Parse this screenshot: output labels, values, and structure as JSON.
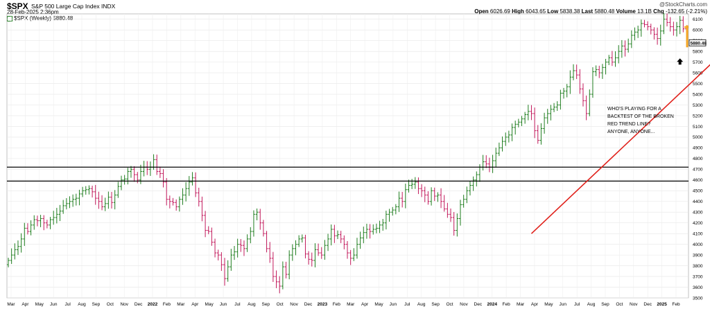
{
  "header": {
    "symbol": "$SPX",
    "name": "S&P 500 Large Cap Index",
    "exchange": "INDX",
    "datetime": "28-Feb-2025 2:36pm",
    "watermark": "@StockCharts.com",
    "ohlc": {
      "open_label": "Open",
      "open": "6026.69",
      "high_label": "High",
      "high": "6043.65",
      "low_label": "Low",
      "low": "5838.38",
      "last_label": "Last",
      "last": "5880.48",
      "volume_label": "Volume",
      "volume": "13.1B",
      "chg_label": "Chg",
      "chg": "-132.65 (-2.21%)"
    },
    "legend": "$SPX (Weekly) 5880.48"
  },
  "chart_data": {
    "type": "ohlc",
    "ylim": [
      3500,
      6150
    ],
    "y_ticks": [
      3500,
      3600,
      3700,
      3800,
      3900,
      4000,
      4100,
      4200,
      4300,
      4400,
      4500,
      4600,
      4700,
      4800,
      4900,
      5000,
      5100,
      5200,
      5300,
      5400,
      5500,
      5600,
      5700,
      5800,
      5900,
      6000,
      6100
    ],
    "x_labels": [
      "Mar",
      "Apr",
      "May",
      "Jun",
      "Jul",
      "Aug",
      "Sep",
      "Oct",
      "Nov",
      "Dec",
      "2022",
      "Feb",
      "Mar",
      "Apr",
      "May",
      "Jun",
      "Jul",
      "Aug",
      "Sep",
      "Oct",
      "Nov",
      "Dec",
      "2023",
      "Feb",
      "Mar",
      "Apr",
      "May",
      "Jun",
      "Jul",
      "Aug",
      "Sep",
      "Oct",
      "Nov",
      "Dec",
      "2024",
      "Feb",
      "Mar",
      "Apr",
      "May",
      "Jun",
      "Jul",
      "Aug",
      "Sep",
      "Oct",
      "Nov",
      "Dec",
      "2025",
      "Feb"
    ],
    "bold_labels": [
      "2022",
      "2023",
      "2024",
      "2025"
    ],
    "last_price_label": "5880.48",
    "closes": [
      3850,
      3900,
      3950,
      3980,
      4050,
      4150,
      4120,
      4180,
      4230,
      4220,
      4240,
      4200,
      4180,
      4230,
      4250,
      4280,
      4310,
      4360,
      4380,
      4400,
      4420,
      4430,
      4470,
      4500,
      4510,
      4520,
      4490,
      4430,
      4400,
      4350,
      4380,
      4440,
      4390,
      4460,
      4540,
      4600,
      4610,
      4680,
      4700,
      4650,
      4600,
      4680,
      4720,
      4700,
      4720,
      4790,
      4680,
      4660,
      4580,
      4420,
      4400,
      4390,
      4350,
      4420,
      4460,
      4520,
      4580,
      4620,
      4480,
      4400,
      4270,
      4130,
      4120,
      4020,
      3920,
      3900,
      3810,
      3680,
      3790,
      3900,
      3930,
      4000,
      3990,
      3960,
      4050,
      4120,
      4280,
      4300,
      4200,
      4100,
      3960,
      3870,
      3700,
      3650,
      3610,
      3790,
      3720,
      3900,
      3960,
      4000,
      4050,
      4060,
      3910,
      3860,
      3850,
      3950,
      3920,
      3900,
      3990,
      4050,
      4140,
      4080,
      4090,
      4050,
      4000,
      3920,
      3870,
      3900,
      4000,
      4060,
      4110,
      4140,
      4120,
      4140,
      4150,
      4180,
      4200,
      4280,
      4300,
      4320,
      4350,
      4430,
      4400,
      4510,
      4550,
      4560,
      4580,
      4520,
      4500,
      4460,
      4400,
      4500,
      4450,
      4460,
      4400,
      4330,
      4280,
      4250,
      4130,
      4240,
      4370,
      4420,
      4500,
      4550,
      4600,
      4650,
      4720,
      4770,
      4750,
      4720,
      4780,
      4850,
      4900,
      4960,
      5000,
      5020,
      5090,
      5120,
      5140,
      5170,
      5210,
      5240,
      5220,
      5060,
      4970,
      5080,
      5180,
      5220,
      5260,
      5280,
      5300,
      5410,
      5430,
      5470,
      5560,
      5620,
      5580,
      5450,
      5340,
      5220,
      5400,
      5610,
      5630,
      5600,
      5650,
      5700,
      5740,
      5700,
      5740,
      5800,
      5850,
      5820,
      5870,
      5950,
      5980,
      6000,
      6060,
      6050,
      6030,
      6000,
      5960,
      5920,
      5990,
      6100,
      6070,
      6030,
      6000,
      6030,
      6090,
      6010,
      5880
    ]
  },
  "levels": [
    {
      "value": 4720
    },
    {
      "value": 4590
    }
  ],
  "trendline": {
    "from": {
      "bar_index": 162,
      "price": 4100
    },
    "to": {
      "bar_index": 227,
      "price": 5950
    }
  },
  "annotation": {
    "lines": [
      "WHO'S PLAYING FOR A",
      "BACKTEST OF THE BROKEN",
      "RED TREND LINE?",
      "ANYONE, ANYONE..."
    ]
  },
  "colors": {
    "up": "#1e7d1e",
    "down": "#c2185b",
    "trend": "#e0201a",
    "highlight": "#f5a623",
    "level": "#000000"
  }
}
